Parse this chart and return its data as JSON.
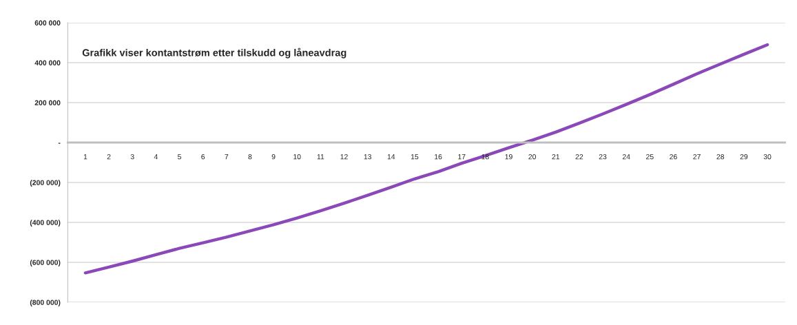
{
  "chart_data": {
    "type": "line",
    "title": "Grafikk viser kontantstrøm etter tilskudd og låneavdrag",
    "categories": [
      "1",
      "2",
      "3",
      "4",
      "5",
      "6",
      "7",
      "8",
      "9",
      "10",
      "11",
      "12",
      "13",
      "14",
      "15",
      "16",
      "17",
      "18",
      "19",
      "20",
      "21",
      "22",
      "23",
      "24",
      "25",
      "26",
      "27",
      "28",
      "29",
      "30"
    ],
    "series": [
      {
        "color": "#8b48b8",
        "values": [
          -653000,
          -624000,
          -594000,
          -562000,
          -530000,
          -502000,
          -474000,
          -443000,
          -412000,
          -378000,
          -342000,
          -304000,
          -264000,
          -224000,
          -182000,
          -146000,
          -104000,
          -66000,
          -26000,
          12000,
          52000,
          97000,
          143000,
          191000,
          240000,
          292000,
          344000,
          393000,
          442000,
          490000
        ]
      }
    ],
    "ylim": [
      -800000,
      600000
    ],
    "yticks": [
      {
        "value": 600000,
        "label": "600 000"
      },
      {
        "value": 400000,
        "label": "400 000"
      },
      {
        "value": 200000,
        "label": "200 000"
      },
      {
        "value": 0,
        "label": "-"
      },
      {
        "value": -200000,
        "label": "(200 000)"
      },
      {
        "value": -400000,
        "label": "(400 000)"
      },
      {
        "value": -600000,
        "label": "(600 000)"
      },
      {
        "value": -800000,
        "label": "(800 000)"
      }
    ],
    "grid": "y",
    "marker": "none",
    "line_style": "solid"
  }
}
